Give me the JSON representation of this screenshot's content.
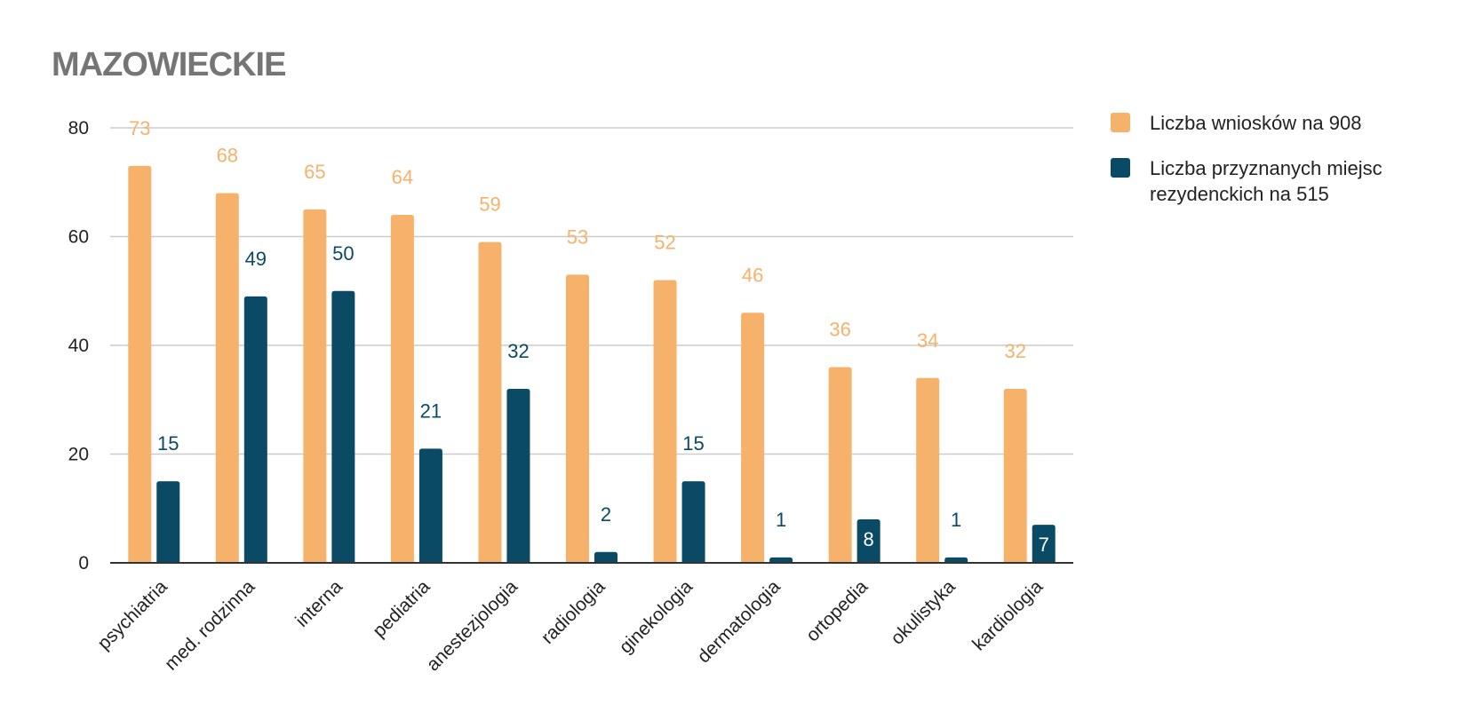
{
  "chart_data": {
    "type": "bar",
    "title": "MAZOWIECKIE",
    "xlabel": "",
    "ylabel": "",
    "ylim": [
      0,
      80
    ],
    "yticks": [
      0,
      20,
      40,
      60,
      80
    ],
    "grid": true,
    "legend_position": "right",
    "categories": [
      "psychiatria",
      "med. rodzinna",
      "interna",
      "pediatria",
      "anestezjologia",
      "radiologia",
      "ginekologia",
      "dermatologia",
      "ortopedia",
      "okulistyka",
      "kardiologia"
    ],
    "series": [
      {
        "name": "Liczba wniosków na 908",
        "color": "#f6b26b",
        "values": [
          73,
          68,
          65,
          64,
          59,
          53,
          52,
          46,
          36,
          34,
          32
        ]
      },
      {
        "name": "Liczba przyznanych miejsc rezydenckich na 515",
        "color": "#0b4a65",
        "values": [
          15,
          49,
          50,
          21,
          32,
          2,
          15,
          1,
          8,
          1,
          7
        ]
      }
    ]
  }
}
